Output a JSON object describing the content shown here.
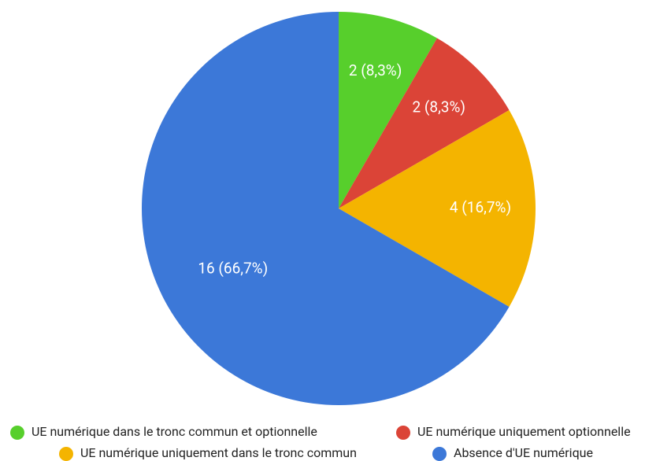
{
  "chart_data": {
    "type": "pie",
    "categories": [
      "UE numérique dans le tronc commun et optionnelle",
      "UE numérique uniquement optionnelle",
      "UE numérique uniquement dans le tronc commun",
      "Absence d'UE numérique"
    ],
    "values": [
      2,
      2,
      4,
      16
    ],
    "value_labels": [
      "2 (8,3%)",
      "2 (8,3%)",
      "4 (16,7%)",
      "16 (66,7%)"
    ],
    "colors": [
      "#57cf2c",
      "#db4437",
      "#f4b400",
      "#3c78d8"
    ]
  }
}
